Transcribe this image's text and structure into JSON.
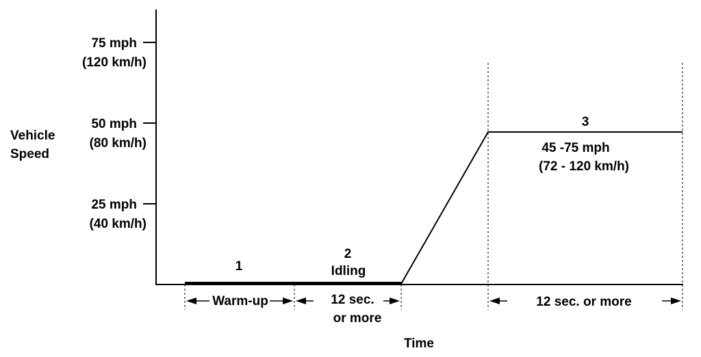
{
  "y_axis": {
    "label_line1": "Vehicle",
    "label_line2": "Speed",
    "ticks": [
      {
        "mph": "75 mph",
        "kmh": "(120 km/h)"
      },
      {
        "mph": "50 mph",
        "kmh": "(80 km/h)"
      },
      {
        "mph": "25 mph",
        "kmh": "(40 km/h)"
      }
    ]
  },
  "x_axis": {
    "label": "Time"
  },
  "phases": {
    "p1": {
      "number": "1",
      "span": "Warm-up"
    },
    "p2": {
      "number": "2",
      "name": "Idling",
      "span_line1": "12 sec.",
      "span_line2": "or  more"
    },
    "p3": {
      "number": "3",
      "speed_line1": "45 -75 mph",
      "speed_line2": "(72 - 120 km/h)",
      "span": "12 sec. or  more"
    }
  }
}
